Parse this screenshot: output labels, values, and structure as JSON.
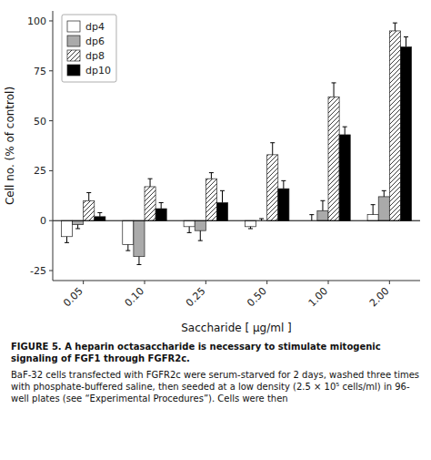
{
  "chart_data": {
    "type": "bar",
    "xlabel": "Saccharide [ μg/ml ]",
    "ylabel": "Cell no. (% of control)",
    "categories": [
      "0.05",
      "0.10",
      "0.25",
      "0.50",
      "1.00",
      "2.00"
    ],
    "series": [
      {
        "name": "dp4",
        "color": "white",
        "values": [
          -8,
          -12,
          -3,
          -3,
          0,
          3
        ],
        "errors": [
          3,
          3,
          3,
          1,
          3,
          5
        ]
      },
      {
        "name": "dp6",
        "color": "#aaaaaa",
        "values": [
          -2,
          -18,
          -5,
          0,
          5,
          12
        ],
        "errors": [
          2,
          4,
          5,
          1,
          5,
          3
        ]
      },
      {
        "name": "dp8",
        "color": "white",
        "values": [
          10,
          17,
          21,
          33,
          62,
          95
        ],
        "errors": [
          4,
          4,
          3,
          6,
          7,
          4
        ]
      },
      {
        "name": "dp10",
        "color": "black",
        "values": [
          2,
          6,
          9,
          16,
          43,
          87
        ],
        "errors": [
          2,
          3,
          6,
          4,
          4,
          5
        ]
      }
    ],
    "ylim": [
      -30,
      105
    ],
    "yticks": [
      -25,
      0,
      25,
      50,
      75,
      100
    ],
    "grid": false,
    "legend": "upper-left",
    "annotations": [
      "FIGURE 5. A heparin octasaccharide is necessary to stimulate mitogenic signaling of FGF1 through FGFR2c.",
      " BaF-32 cells transfected with FGFR2c were serum-starved for 2 days, washed three times with phosphate-buffered saline, then seeded at a low density (2.5 × 10⁵ cells/ml) in 96-well plates (see “Experimental Procedures”). Cells were then"
    ]
  }
}
